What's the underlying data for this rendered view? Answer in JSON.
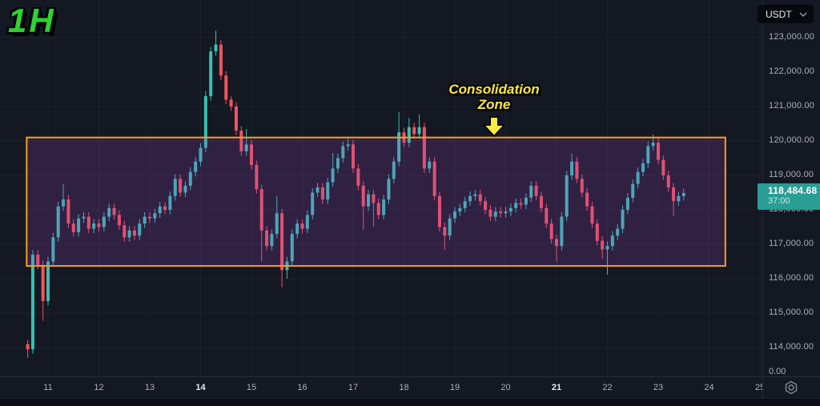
{
  "header": {
    "timeframe_label": "1H",
    "currency_selector": {
      "value": "USDT",
      "chevron_icon": "chevron-down"
    }
  },
  "annotation": {
    "line1": "Consolidation",
    "line2": "Zone",
    "arrow_icon": "block-arrow-down"
  },
  "price_scale": {
    "ticks": [
      {
        "label": "123,000.00",
        "value": 123000
      },
      {
        "label": "122,000.00",
        "value": 122000
      },
      {
        "label": "121,000.00",
        "value": 121000
      },
      {
        "label": "120,000.00",
        "value": 120000
      },
      {
        "label": "119,000.00",
        "value": 119000
      },
      {
        "label": "118,000.00",
        "value": 118000
      },
      {
        "label": "117,000.00",
        "value": 117000
      },
      {
        "label": "116,000.00",
        "value": 116000
      },
      {
        "label": "115,000.00",
        "value": 115000
      },
      {
        "label": "114,000.00",
        "value": 114000
      }
    ],
    "zero_label": "0.00",
    "last_price_label": "118,484.68",
    "countdown": "37:00"
  },
  "time_scale": {
    "ticks": [
      {
        "label": "11",
        "day": 11,
        "bold": false
      },
      {
        "label": "12",
        "day": 12,
        "bold": false
      },
      {
        "label": "13",
        "day": 13,
        "bold": false
      },
      {
        "label": "14",
        "day": 14,
        "bold": true
      },
      {
        "label": "15",
        "day": 15,
        "bold": false
      },
      {
        "label": "16",
        "day": 16,
        "bold": false
      },
      {
        "label": "17",
        "day": 17,
        "bold": false
      },
      {
        "label": "18",
        "day": 18,
        "bold": false
      },
      {
        "label": "19",
        "day": 19,
        "bold": false
      },
      {
        "label": "20",
        "day": 20,
        "bold": false
      },
      {
        "label": "21",
        "day": 21,
        "bold": true
      },
      {
        "label": "22",
        "day": 22,
        "bold": false
      },
      {
        "label": "23",
        "day": 23,
        "bold": false
      },
      {
        "label": "24",
        "day": 24,
        "bold": false
      },
      {
        "label": "25",
        "day": 25,
        "bold": false
      }
    ]
  },
  "chart_data": {
    "type": "candlestick",
    "quote_currency": "USDT",
    "timeframe": "1H",
    "x_axis_days": [
      11,
      12,
      13,
      14,
      15,
      16,
      17,
      18,
      19,
      20,
      21,
      22,
      23,
      24,
      25
    ],
    "y_axis_values": [
      123000,
      122000,
      121000,
      120000,
      119000,
      118000,
      117000,
      116000,
      115000,
      114000
    ],
    "y_range_visible": [
      113500,
      123500
    ],
    "grid": true,
    "start_day": 10.6,
    "step_day": 0.1,
    "first_open": 114100,
    "default_wick": 130,
    "closes": [
      113950,
      116700,
      116400,
      115350,
      116500,
      117200,
      118100,
      118300,
      117600,
      117350,
      117750,
      117800,
      117450,
      117600,
      117500,
      117800,
      118050,
      117850,
      117550,
      117200,
      117400,
      117250,
      117600,
      117800,
      117750,
      117900,
      118100,
      118000,
      118400,
      118900,
      118500,
      118700,
      119100,
      119400,
      119800,
      121300,
      122600,
      122800,
      121900,
      121200,
      121000,
      120300,
      119700,
      119900,
      119300,
      118600,
      117400,
      116950,
      117300,
      117900,
      116250,
      116500,
      117300,
      117600,
      117450,
      117850,
      118500,
      118650,
      118300,
      118800,
      119200,
      119500,
      119850,
      119900,
      119200,
      118700,
      118100,
      118450,
      118200,
      117850,
      118300,
      118900,
      119400,
      120250,
      119950,
      120400,
      120200,
      120400,
      119200,
      119400,
      118400,
      117500,
      117250,
      117750,
      117950,
      118050,
      118250,
      118400,
      118450,
      118250,
      118000,
      117800,
      117950,
      117900,
      117950,
      118050,
      118200,
      118150,
      118350,
      118700,
      118400,
      118050,
      117600,
      117150,
      116950,
      117800,
      119000,
      119400,
      118900,
      118500,
      118100,
      117600,
      117100,
      116850,
      116950,
      117250,
      117450,
      118000,
      118350,
      118750,
      119100,
      119350,
      119850,
      119950,
      119450,
      119000,
      118650,
      118250,
      118400,
      118484.68
    ],
    "wick_high_overrides": {
      "7": 118750,
      "35": 121450,
      "37": 123200,
      "40": 121300,
      "43": 120350,
      "49": 118400,
      "60": 119650,
      "63": 120070,
      "73": 120840,
      "75": 120670,
      "77": 120770,
      "107": 119630,
      "123": 120190
    },
    "wick_low_overrides": {
      "0": 113700,
      "3": 114780,
      "46": 116500,
      "50": 115750,
      "51": 116000,
      "66": 117420,
      "68": 117510,
      "82": 116840,
      "104": 116490,
      "113": 116580,
      "114": 116120,
      "127": 117810
    },
    "last_price": 118484.68,
    "consolidation_zone": {
      "start_day": 10.58,
      "end_day": 24.32,
      "top_price": 120100,
      "bottom_price": 116370
    }
  },
  "colors": {
    "background": "#141822",
    "grid": "#1c2130",
    "separator": "#262b38",
    "axis_text": "#aab0bb",
    "axis_text_bold": "#e7eaf1",
    "up_candle": "#38bfb3",
    "down_candle": "#f1545e",
    "last_price_badge": "#2a9d94",
    "zone_border": "#f7a01d",
    "zone_fill": "rgba(160,70,200,0.20)",
    "annotation_yellow": "#ffe93a",
    "timeframe_green": "#2ed32e"
  },
  "footer": {
    "settings_icon": "gear-icon"
  }
}
